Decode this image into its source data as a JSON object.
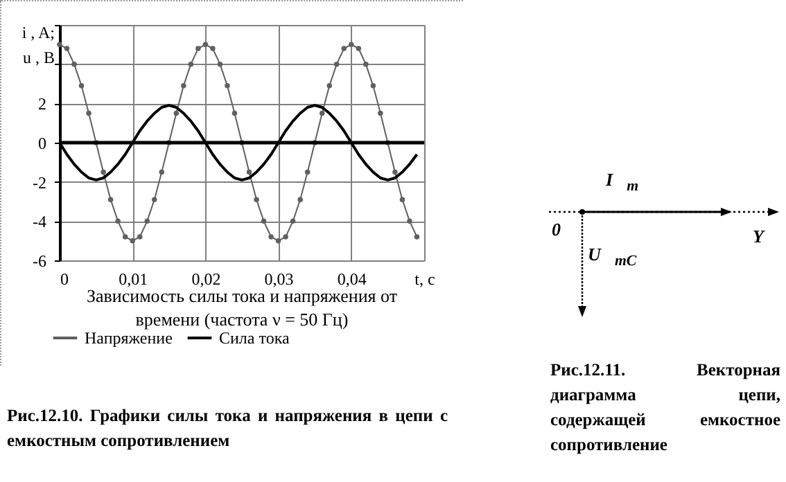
{
  "chart_data": {
    "type": "line",
    "title": "Зависимость силы тока и напряжения от\nвремени (частота ν = 50 Гц)",
    "xlabel": "t, c",
    "ylabel": "i , A;\nu , B",
    "x": [
      0,
      0.001,
      0.002,
      0.003,
      0.004,
      0.005,
      0.006,
      0.007,
      0.008,
      0.009,
      0.01,
      0.011,
      0.012,
      0.013,
      0.014,
      0.015,
      0.016,
      0.017,
      0.018,
      0.019,
      0.02,
      0.021,
      0.022,
      0.023,
      0.024,
      0.025,
      0.026,
      0.027,
      0.028,
      0.029,
      0.03,
      0.031,
      0.032,
      0.033,
      0.034,
      0.035,
      0.036,
      0.037,
      0.038,
      0.039,
      0.04,
      0.041,
      0.042,
      0.043,
      0.044,
      0.045,
      0.046,
      0.047,
      0.048,
      0.049
    ],
    "series": [
      {
        "name": "Напряжение",
        "color": "#606060",
        "marker": "circle",
        "values": [
          5,
          4.8,
          4,
          2.9,
          1.5,
          0,
          -1.5,
          -2.9,
          -4,
          -4.8,
          -5,
          -4.8,
          -4,
          -2.9,
          -1.5,
          0,
          1.5,
          2.9,
          4,
          4.8,
          5,
          4.8,
          4,
          2.9,
          1.5,
          0,
          -1.5,
          -2.9,
          -4,
          -4.8,
          -5,
          -4.8,
          -4,
          -2.9,
          -1.5,
          0,
          1.5,
          2.9,
          4,
          4.8,
          5,
          4.8,
          4,
          2.9,
          1.5,
          0,
          -1.5,
          -2.9,
          -4,
          -4.8
        ]
      },
      {
        "name": "Сила тока",
        "color": "#000000",
        "marker": "none",
        "values": [
          0,
          -0.6,
          -1.1,
          -1.5,
          -1.8,
          -1.9,
          -1.8,
          -1.5,
          -1.1,
          -0.6,
          0,
          0.6,
          1.1,
          1.5,
          1.8,
          1.9,
          1.8,
          1.5,
          1.1,
          0.6,
          0,
          -0.6,
          -1.1,
          -1.5,
          -1.8,
          -1.9,
          -1.8,
          -1.5,
          -1.1,
          -0.6,
          0,
          0.6,
          1.1,
          1.5,
          1.8,
          1.9,
          1.8,
          1.5,
          1.1,
          0.6,
          0,
          -0.6,
          -1.1,
          -1.5,
          -1.8,
          -1.9,
          -1.8,
          -1.5,
          -1.1,
          -0.6
        ]
      }
    ],
    "xlim": [
      0,
      0.05
    ],
    "xticks": [
      0,
      {
        "value": 0.01,
        "label": "0,01"
      },
      {
        "value": 0.02,
        "label": "0,02"
      },
      {
        "value": 0.03,
        "label": "0,03"
      },
      {
        "value": 0.04,
        "label": "0,04"
      },
      {
        "value": 0.05,
        "label": null
      }
    ],
    "ylim": [
      -6,
      6
    ],
    "yticks": [
      -6,
      -4,
      -2,
      0,
      2,
      {
        "value": 4,
        "label": null
      },
      {
        "value": 6,
        "label": null
      }
    ],
    "ref_lines": [
      {
        "axis": "y",
        "value": 0,
        "color": "#000000"
      }
    ],
    "grid": true,
    "legend": "bottom",
    "annotations": [
      "Рис.12.10. Графики силы тока и напряжения в цепи с емкостным сопротивлением",
      "I⃗$_{m}$",
      "0",
      "Y",
      "U⃗$_{mC}$",
      "Рис.12.11. Векторная диаграмма цепи, содержащей емкостное сопротивление"
    ]
  }
}
